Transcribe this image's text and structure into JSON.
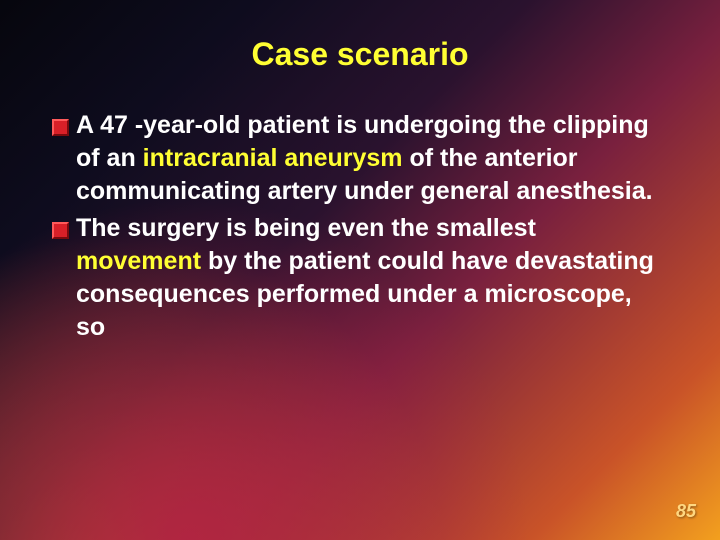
{
  "slide": {
    "title": "Case scenario",
    "title_color": "#ffff33",
    "title_fontsize": 32,
    "body_fontsize": 25,
    "body_color": "#ffffff",
    "highlight_color": "#ffff33",
    "bullets": [
      {
        "segments": [
          {
            "text": "A 47 -year-old patient is undergoing the clipping of an ",
            "highlight": false
          },
          {
            "text": "intracranial aneurysm",
            "highlight": true
          },
          {
            "text": " of the anterior communicating artery under general anesthesia.",
            "highlight": false
          }
        ]
      },
      {
        "segments": [
          {
            "text": "The surgery is being even the smallest ",
            "highlight": false
          },
          {
            "text": "movement",
            "highlight": true
          },
          {
            "text": " by the patient could have devastating consequences performed under a microscope, so",
            "highlight": false
          }
        ]
      }
    ],
    "bullet_marker_color": "#d82028",
    "page_number": "85",
    "page_number_color": "#ffd780",
    "page_number_fontsize": 18,
    "background": {
      "gradient_stops": [
        "#06060d",
        "#0e0c1e",
        "#2a122e",
        "#79203e",
        "#c95328",
        "#f3a01e"
      ]
    }
  }
}
